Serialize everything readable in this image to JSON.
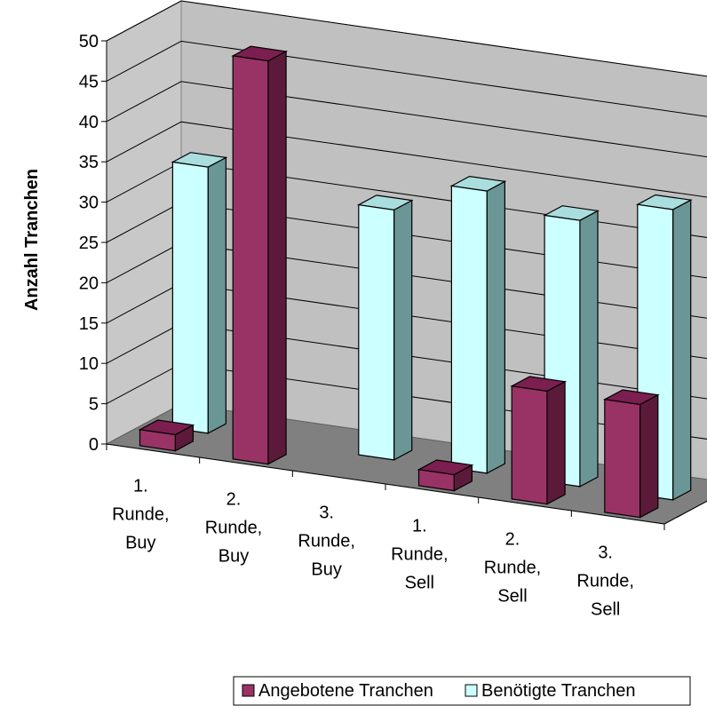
{
  "chart_data": {
    "type": "bar",
    "ylabel": "Anzahl Tranchen",
    "xlabel": "",
    "ylim": [
      0,
      50
    ],
    "yticks": [
      "0",
      "5",
      "10",
      "15",
      "20",
      "25",
      "30",
      "35",
      "40",
      "45",
      "50"
    ],
    "categories": [
      [
        "1.",
        "Runde,",
        "Buy"
      ],
      [
        "2.",
        "Runde,",
        "Buy"
      ],
      [
        "3.",
        "Runde,",
        "Buy"
      ],
      [
        "1.",
        "Runde,",
        "Sell"
      ],
      [
        "2.",
        "Runde,",
        "Sell"
      ],
      [
        "3.",
        "Runde,",
        "Sell"
      ]
    ],
    "series": [
      {
        "name": "Angebotene Tranchen",
        "values": [
          2,
          50,
          0,
          2,
          14,
          14
        ]
      },
      {
        "name": "Benötigte Tranchen",
        "values": [
          33,
          0,
          31,
          35,
          33,
          36
        ]
      }
    ],
    "colors": {
      "series1_front": "#993366",
      "series1_top": "#7a1f4f",
      "series1_side": "#5c1a3a",
      "series2_front": "#ccffff",
      "series2_top": "#aadddd",
      "series2_side": "#6b9696",
      "back_wall": "#c0c0c0",
      "floor": "#808080",
      "grid": "#000000"
    },
    "legend": {
      "position": "bottom-right",
      "items": [
        "Angebotene Tranchen",
        "Benötigte Tranchen"
      ]
    },
    "grid": true
  }
}
